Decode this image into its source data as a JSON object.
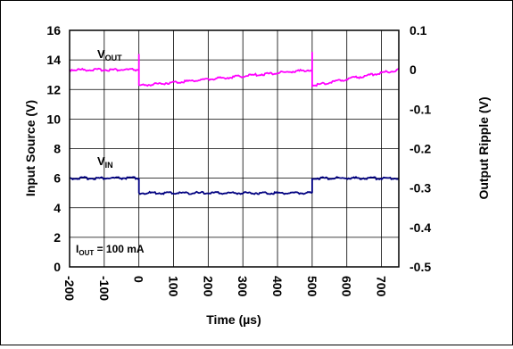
{
  "chart_data": {
    "type": "line",
    "xlabel": "Time (µs)",
    "ylabel_left": "Input Source (V)",
    "ylabel_right": "Output Ripple (V)",
    "xlim": [
      -200,
      750
    ],
    "ylim_left": [
      0,
      16
    ],
    "ylim_right": [
      -0.5,
      0.1
    ],
    "x_ticks": [
      -200,
      -100,
      0,
      100,
      200,
      300,
      400,
      500,
      600,
      700
    ],
    "y_left_ticks": [
      0,
      2,
      4,
      6,
      8,
      10,
      12,
      14,
      16
    ],
    "y_right_ticks": [
      "0.1",
      "0",
      "-0.1",
      "-0.2",
      "-0.3",
      "-0.4",
      "-0.5"
    ],
    "y_right_values": [
      0.1,
      0,
      -0.1,
      -0.2,
      -0.3,
      -0.4,
      -0.5
    ],
    "grid": true,
    "series": [
      {
        "name": "VOUT",
        "axis": "right",
        "color": "#ff00ff",
        "x": [
          -200,
          0,
          0,
          0,
          500,
          500,
          500,
          750
        ],
        "y": [
          0.0,
          0.0,
          0.04,
          -0.04,
          0.0,
          0.045,
          -0.04,
          0.0
        ]
      },
      {
        "name": "VIN",
        "axis": "left",
        "color": "#000080",
        "x": [
          -200,
          0,
          0,
          500,
          500,
          750
        ],
        "y": [
          6.0,
          6.0,
          5.0,
          5.0,
          6.0,
          6.0
        ]
      }
    ],
    "annotations": {
      "vout": {
        "main": "V",
        "sub": "OUT"
      },
      "vin": {
        "main": "V",
        "sub": "IN"
      },
      "iout": {
        "main": "I",
        "sub": "OUT",
        "rest": " = 100 mA"
      }
    }
  }
}
